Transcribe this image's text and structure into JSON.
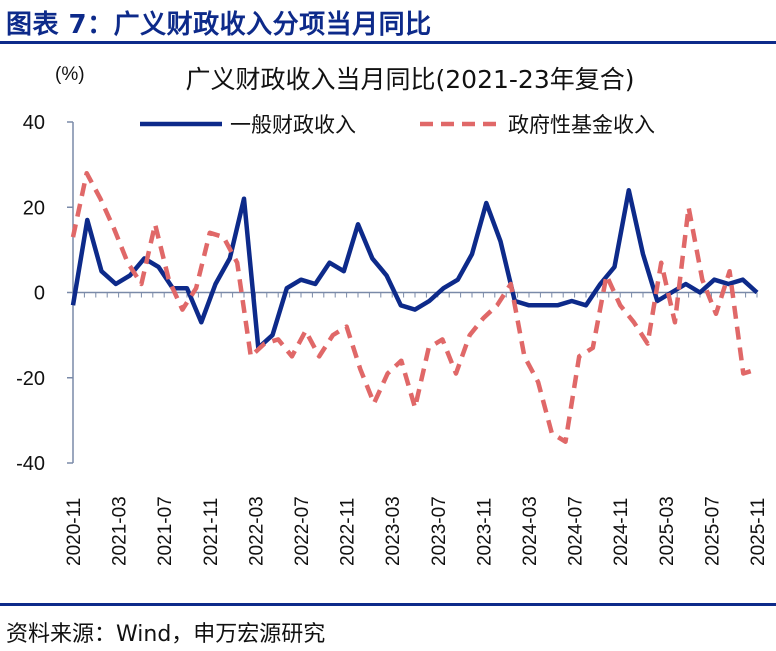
{
  "figure": {
    "title": "图表 7：广义财政收入分项当月同比",
    "source": "资料来源：Wind，申万宏源研究"
  },
  "chart_data": {
    "type": "line",
    "title": "广义财政收入当月同比(2021-23年复合)",
    "ylabel": "(%)",
    "xlabel": "",
    "ylim": [
      -40,
      40
    ],
    "yticks": [
      40,
      20,
      0,
      -20,
      -40
    ],
    "x_start": "2020-11",
    "x_tick_labels": [
      "2020-11",
      "2021-03",
      "2021-07",
      "2021-11",
      "2022-03",
      "2022-07",
      "2022-11",
      "2023-03",
      "2023-07",
      "2023-11",
      "2024-03",
      "2024-07",
      "2024-11",
      "2025-03",
      "2025-07",
      "2025-11"
    ],
    "legend_position": "top",
    "series": [
      {
        "name": "一般财政收入",
        "color": "#0d2a8a",
        "style": "solid",
        "values": [
          -3,
          17,
          5,
          2,
          4,
          8,
          6,
          1,
          1,
          -7,
          2,
          8,
          22,
          -13,
          -10,
          1,
          3,
          2,
          7,
          5,
          16,
          8,
          4,
          -3,
          -4,
          -2,
          1,
          3,
          9,
          21,
          12,
          -2,
          -3,
          -3,
          -3,
          -2,
          -3,
          2,
          6,
          24,
          9,
          -2,
          0,
          2,
          0,
          3,
          2,
          3,
          0
        ]
      },
      {
        "name": "政府性基金收入",
        "color": "#e06868",
        "style": "dashed",
        "values": [
          13,
          28,
          22,
          15,
          7,
          2,
          16,
          3,
          -4,
          1,
          14,
          13,
          7,
          -15,
          -12,
          -11,
          -15,
          -9,
          -15,
          -10,
          -8,
          -18,
          -26,
          -19,
          -16,
          -27,
          -13,
          -11,
          -19,
          -10,
          -6,
          -3,
          2,
          -15,
          -21,
          -33,
          -35,
          -15,
          -13,
          4,
          -3,
          -7,
          -12,
          7,
          -7,
          20,
          3,
          -5,
          5,
          -19,
          -18
        ]
      }
    ]
  }
}
